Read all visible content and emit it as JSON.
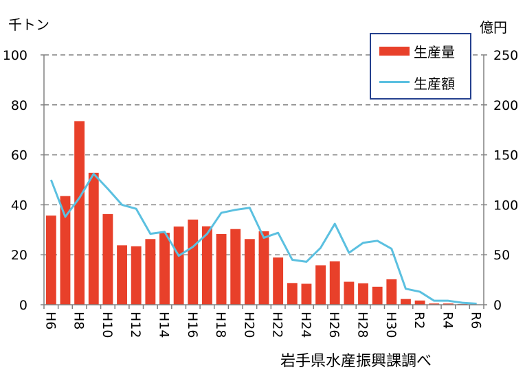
{
  "chart_data": {
    "type": "bar",
    "categories": [
      "H6",
      "H7",
      "H8",
      "H9",
      "H10",
      "H11",
      "H12",
      "H13",
      "H14",
      "H15",
      "H16",
      "H17",
      "H18",
      "H19",
      "H20",
      "H21",
      "H22",
      "H23",
      "H24",
      "H25",
      "H26",
      "H27",
      "H28",
      "H29",
      "H30",
      "R1",
      "R2",
      "R3",
      "R4",
      "R5",
      "R6"
    ],
    "x_tick_labels": [
      "H6",
      "",
      "H8",
      "",
      "H10",
      "",
      "H12",
      "",
      "H14",
      "",
      "H16",
      "",
      "H18",
      "",
      "H20",
      "",
      "H22",
      "",
      "H24",
      "",
      "H26",
      "",
      "H28",
      "",
      "H30",
      "",
      "R2",
      "",
      "R4",
      "",
      "R6"
    ],
    "series": [
      {
        "name": "生産量",
        "axis": "left",
        "type": "bar",
        "color": "#e8402a",
        "values": [
          35.7,
          43.5,
          73.5,
          52.8,
          36.3,
          23.8,
          23.4,
          26.3,
          28.8,
          31.3,
          34.1,
          31.4,
          28.3,
          30.3,
          26.3,
          29.4,
          18.9,
          8.7,
          8.4,
          15.8,
          17.4,
          9.2,
          8.6,
          7.2,
          10.2,
          2.3,
          1.7,
          0.5,
          0.5,
          0.3,
          0.1
        ]
      },
      {
        "name": "生産額",
        "axis": "right",
        "type": "line",
        "color": "#5bc0e0",
        "values": [
          125,
          88,
          107,
          131,
          116,
          100,
          96,
          71,
          73,
          49,
          58,
          71,
          92,
          95,
          97,
          67,
          72,
          45,
          43,
          57,
          81,
          52,
          62,
          64,
          56,
          16,
          13,
          4,
          4,
          2,
          1
        ]
      }
    ],
    "y_left": {
      "unit": "千トン",
      "ylim": [
        0,
        100
      ],
      "ticks": [
        0,
        20,
        40,
        60,
        80,
        100
      ]
    },
    "y_right": {
      "unit": "億円",
      "ylim": [
        0,
        250
      ],
      "ticks": [
        0,
        50,
        100,
        150,
        200,
        250
      ]
    },
    "legend": {
      "position": "top-right",
      "entries": [
        "生産量",
        "生産額"
      ]
    },
    "grid": {
      "horizontal": true,
      "style": "dashed"
    },
    "source": "岩手県水産振興課調べ"
  }
}
